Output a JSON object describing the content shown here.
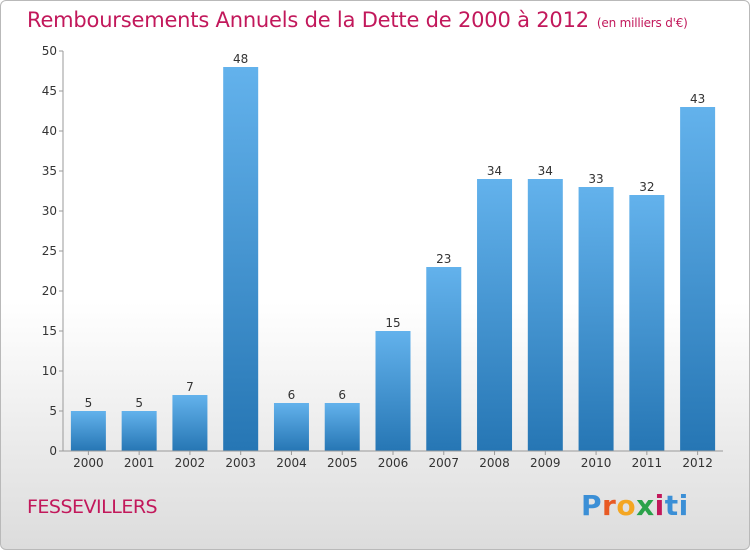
{
  "header": {
    "title": "Remboursements Annuels de la Dette de 2000 à 2012",
    "unit": "(en milliers d'€)"
  },
  "footer": {
    "commune": "FESSEVILLERS",
    "logo_letters": [
      "P",
      "r",
      "o",
      "x",
      "i",
      "ti"
    ]
  },
  "colors": {
    "bar_light": "#63b2ec",
    "bar_dark": "#2676b4",
    "title": "#c2185b"
  },
  "chart_data": {
    "type": "bar",
    "title": "Remboursements Annuels de la Dette de 2000 à 2012",
    "ylabel": "",
    "xlabel": "",
    "ylim": [
      0,
      50
    ],
    "yticks": [
      0,
      5,
      10,
      15,
      20,
      25,
      30,
      35,
      40,
      45,
      50
    ],
    "grid": false,
    "categories": [
      "2000",
      "2001",
      "2002",
      "2003",
      "2004",
      "2005",
      "2006",
      "2007",
      "2008",
      "2009",
      "2010",
      "2011",
      "2012"
    ],
    "values": [
      5,
      5,
      7,
      48,
      6,
      6,
      15,
      23,
      34,
      34,
      33,
      32,
      43
    ]
  }
}
